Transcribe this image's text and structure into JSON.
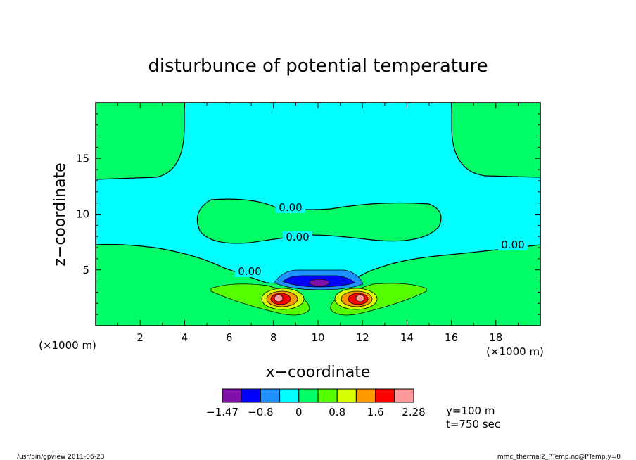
{
  "chart_data": {
    "type": "contour",
    "title": "disturbunce of potential temperature",
    "xlabel": "x−coordinate",
    "ylabel": "z−coordinate",
    "x_unit": "(×1000 m)",
    "y_unit": "(×1000 m)",
    "xlim": [
      0,
      20
    ],
    "ylim": [
      0,
      20
    ],
    "x_ticks": [
      "2",
      "4",
      "6",
      "8",
      "10",
      "12",
      "14",
      "16",
      "18"
    ],
    "y_ticks": [
      "5",
      "10",
      "15"
    ],
    "contour_labels": [
      "0.00",
      "0.00",
      "0.00",
      "0.00"
    ],
    "colorbar": {
      "colors": [
        "#7f10a8",
        "#0000ff",
        "#1e90ff",
        "#00ffff",
        "#00ff66",
        "#55ff00",
        "#d8ff00",
        "#ff9900",
        "#ff0000",
        "#ff9999"
      ],
      "tick_labels": [
        "−1.47",
        "−0.8",
        "0",
        "0.8",
        "1.6",
        "2.28"
      ]
    },
    "annotations": [
      "y=100 m",
      "t=750 sec"
    ]
  },
  "footer": {
    "left": "/usr/bin/gpview   2011-06-23",
    "right": "mmc_thermal2_PTemp.nc@PTemp,y=0"
  }
}
